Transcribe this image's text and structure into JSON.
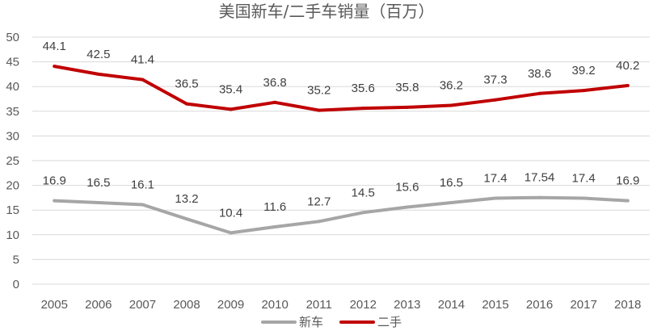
{
  "chart_data": {
    "type": "line",
    "title": "美国新车/二手车销量（百万）",
    "xlabel": "",
    "ylabel": "",
    "categories": [
      "2005",
      "2006",
      "2007",
      "2008",
      "2009",
      "2010",
      "2011",
      "2012",
      "2013",
      "2014",
      "2015",
      "2016",
      "2017",
      "2018"
    ],
    "ylim": [
      0,
      50
    ],
    "yticks": [
      "0",
      "5",
      "10",
      "15",
      "20",
      "25",
      "30",
      "35",
      "40",
      "45",
      "50"
    ],
    "grid": true,
    "legend_position": "bottom",
    "series": [
      {
        "name": "新车",
        "color": "#a6a6a6",
        "values": [
          16.9,
          16.5,
          16.1,
          13.2,
          10.4,
          11.6,
          12.7,
          14.5,
          15.6,
          16.5,
          17.4,
          17.54,
          17.4,
          16.9
        ],
        "labels": [
          "16.9",
          "16.5",
          "16.1",
          "13.2",
          "10.4",
          "11.6",
          "12.7",
          "14.5",
          "15.6",
          "16.5",
          "17.4",
          "17.54",
          "17.4",
          "16.9"
        ]
      },
      {
        "name": "二手",
        "color": "#c00000",
        "values": [
          44.1,
          42.5,
          41.4,
          36.5,
          35.4,
          36.8,
          35.2,
          35.6,
          35.8,
          36.2,
          37.3,
          38.6,
          39.2,
          40.2
        ],
        "labels": [
          "44.1",
          "42.5",
          "41.4",
          "36.5",
          "35.4",
          "36.8",
          "35.2",
          "35.6",
          "35.8",
          "36.2",
          "37.3",
          "38.6",
          "39.2",
          "40.2"
        ]
      }
    ]
  }
}
